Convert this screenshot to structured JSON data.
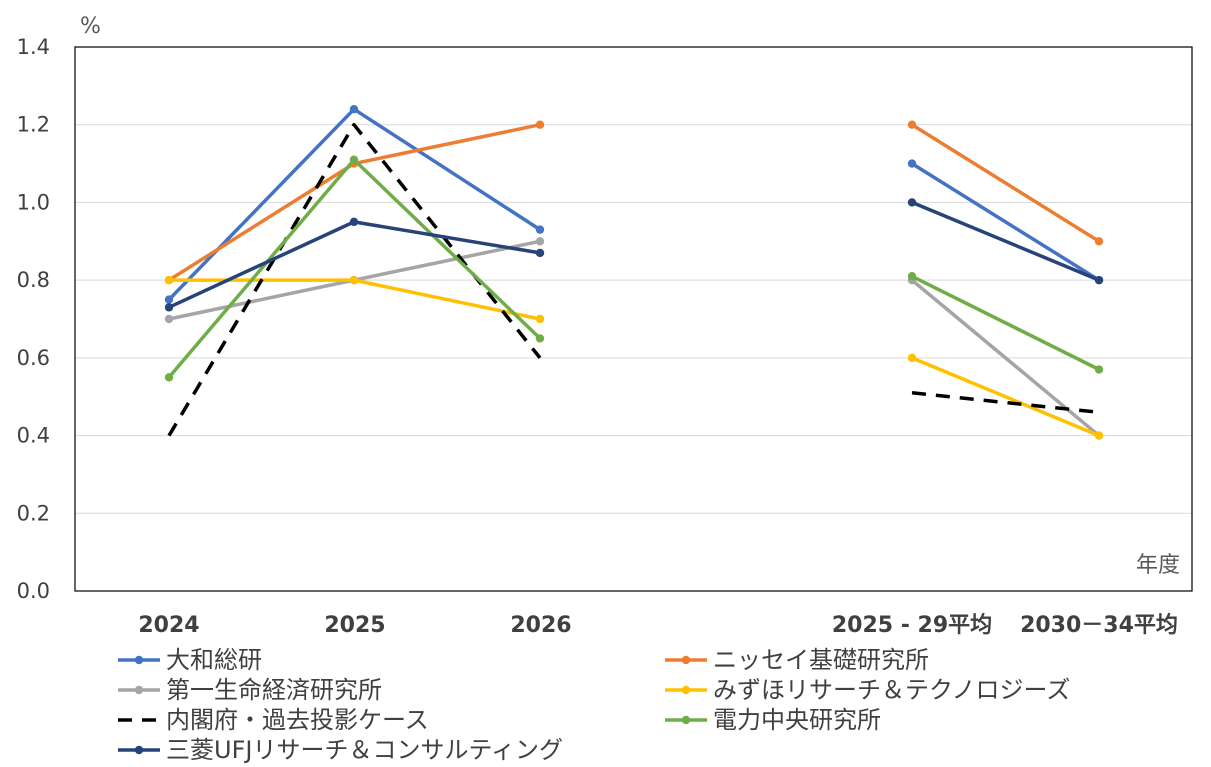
{
  "chart_data": {
    "type": "line",
    "y_unit_label": "%",
    "x_unit_label": "年度",
    "categories": [
      "2024",
      "2025",
      "2026",
      "2025 - 29平均",
      "2030－34平均"
    ],
    "y_ticks": [
      "0.0",
      "0.2",
      "0.4",
      "0.6",
      "0.8",
      "1.0",
      "1.2",
      "1.4"
    ],
    "ylim": [
      0,
      1.4
    ],
    "grid": true,
    "legend_position": "bottom",
    "series": [
      {
        "name": "大和総研",
        "color": "#4472C4",
        "dash": false,
        "markers": true,
        "values": [
          0.75,
          1.24,
          0.93,
          1.1,
          0.8
        ]
      },
      {
        "name": "ニッセイ基礎研究所",
        "color": "#ED7D31",
        "dash": false,
        "markers": true,
        "values": [
          0.8,
          1.1,
          1.2,
          1.2,
          0.9
        ]
      },
      {
        "name": "第一生命経済研究所",
        "color": "#A5A5A5",
        "dash": false,
        "markers": true,
        "values": [
          0.7,
          0.8,
          0.9,
          0.8,
          0.4
        ]
      },
      {
        "name": "みずほリサーチ＆テクノロジーズ",
        "color": "#FFC000",
        "dash": false,
        "markers": true,
        "values": [
          0.8,
          0.8,
          0.7,
          0.6,
          0.4
        ]
      },
      {
        "name": "内閣府・過去投影ケース",
        "color": "#000000",
        "dash": true,
        "markers": false,
        "values": [
          0.4,
          1.2,
          0.6,
          0.51,
          0.46
        ]
      },
      {
        "name": "電力中央研究所",
        "color": "#70AD47",
        "dash": false,
        "markers": true,
        "values": [
          0.55,
          1.11,
          0.65,
          0.81,
          0.57
        ]
      },
      {
        "name": "三菱UFJリサーチ＆コンサルティング",
        "color": "#264478",
        "dash": false,
        "markers": true,
        "values": [
          0.73,
          0.95,
          0.87,
          1.0,
          0.8
        ]
      }
    ]
  }
}
